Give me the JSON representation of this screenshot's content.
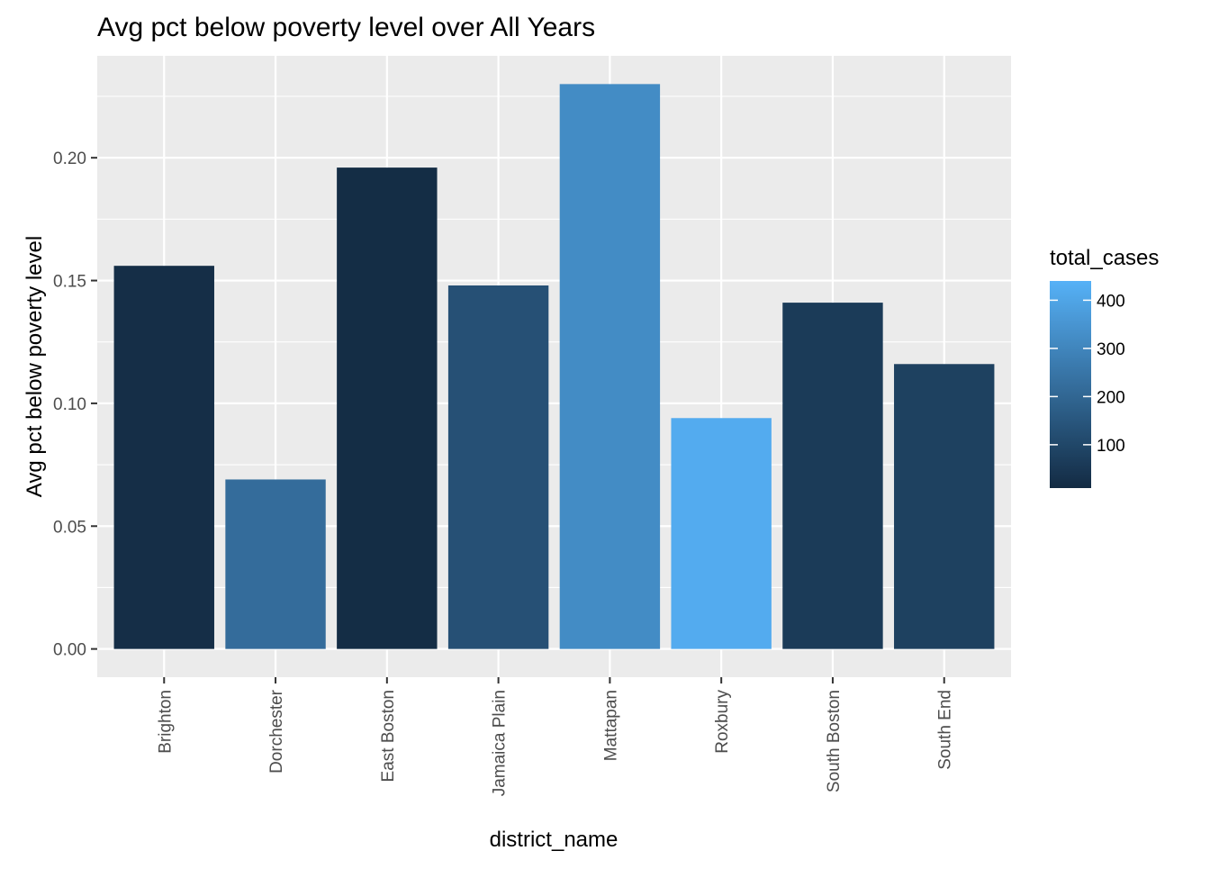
{
  "chart_data": {
    "type": "bar",
    "title": "Avg pct below poverty level over All Years",
    "xlabel": "district_name",
    "ylabel": "Avg pct below poverty level",
    "categories": [
      "Brighton",
      "Dorchester",
      "East Boston",
      "Jamaica Plain",
      "Mattapan",
      "Roxbury",
      "South Boston",
      "South End"
    ],
    "values": [
      0.156,
      0.069,
      0.196,
      0.148,
      0.23,
      0.094,
      0.141,
      0.116
    ],
    "fill_values": [
      20,
      220,
      15,
      130,
      320,
      420,
      60,
      80
    ],
    "ylim": [
      -0.0115,
      0.2415
    ],
    "yticks": [
      0.0,
      0.05,
      0.1,
      0.15,
      0.2
    ],
    "ytick_labels": [
      "0.00",
      "0.05",
      "0.10",
      "0.15",
      "0.20"
    ],
    "grid": true,
    "legend": {
      "title": "total_cases",
      "placement": "right",
      "range": [
        10,
        440
      ],
      "ticks": [
        100,
        200,
        300,
        400
      ],
      "tick_labels": [
        "100",
        "200",
        "300",
        "400"
      ],
      "low_color": "#132B43",
      "high_color": "#56B1F7"
    },
    "colors": {
      "panel_background": "#EBEBEB",
      "grid_major": "#FFFFFF",
      "text": "#000000",
      "tick_text": "#4D4D4D",
      "tick_mark": "#333333"
    }
  }
}
